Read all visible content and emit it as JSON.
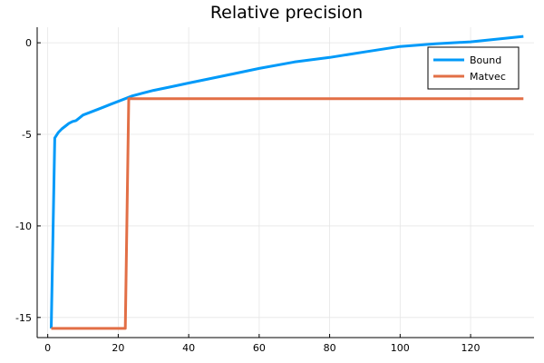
{
  "chart_data": {
    "type": "line",
    "title": "Relative precision",
    "xlabel": "",
    "ylabel": "",
    "xlim": [
      -3,
      138
    ],
    "ylim": [
      -16.1,
      0.85
    ],
    "xticks": [
      0,
      20,
      40,
      60,
      80,
      100,
      120
    ],
    "yticks": [
      0,
      -5,
      -10,
      -15
    ],
    "grid": true,
    "legend_position": "top-right",
    "series": [
      {
        "name": "Bound",
        "color": "#009af9",
        "x": [
          1,
          2,
          3,
          4,
          5,
          6,
          7,
          8,
          9,
          10,
          12,
          14,
          16,
          18,
          20,
          22,
          24,
          27,
          30,
          35,
          40,
          50,
          60,
          70,
          80,
          90,
          100,
          110,
          120,
          130,
          135
        ],
        "y": [
          -15.6,
          -5.2,
          -4.9,
          -4.7,
          -4.55,
          -4.4,
          -4.3,
          -4.25,
          -4.1,
          -3.95,
          -3.8,
          -3.65,
          -3.5,
          -3.35,
          -3.2,
          -3.05,
          -2.9,
          -2.75,
          -2.6,
          -2.4,
          -2.2,
          -1.8,
          -1.4,
          -1.05,
          -0.8,
          -0.5,
          -0.2,
          -0.05,
          0.05,
          0.25,
          0.35
        ]
      },
      {
        "name": "Matvec",
        "color": "#e26f46",
        "x": [
          1,
          22,
          23,
          135
        ],
        "y": [
          -15.6,
          -15.6,
          -3.05,
          -3.05
        ]
      }
    ]
  }
}
